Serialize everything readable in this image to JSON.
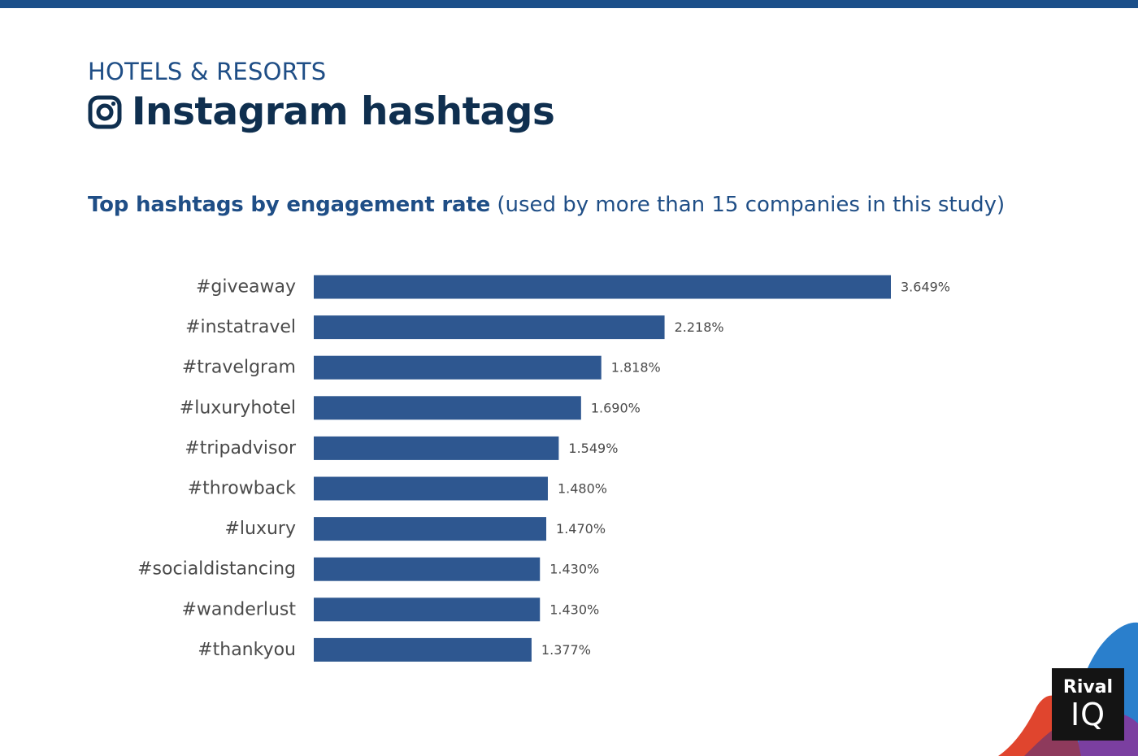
{
  "colors": {
    "top_bar": "#1b4f8a",
    "eyebrow": "#1f4e86",
    "title": "#0f2f4f",
    "subtitle": "#1f4e86",
    "bar": "#2e5790",
    "category_label": "#4a4a4a",
    "value_label": "#4a4a4a"
  },
  "header": {
    "eyebrow": "HOTELS & RESORTS",
    "title": "Instagram hashtags",
    "title_icon": "instagram-icon"
  },
  "subtitle": {
    "bold": "Top hashtags by engagement rate",
    "note": " (used by more than 15 companies in this study)"
  },
  "logo": {
    "line1": "Rival",
    "line2": "IQ"
  },
  "chart_data": {
    "type": "bar",
    "orientation": "horizontal",
    "title": "Top hashtags by engagement rate",
    "categories": [
      "#giveaway",
      "#instatravel",
      "#travelgram",
      "#luxuryhotel",
      "#tripadvisor",
      "#throwback",
      "#luxury",
      "#socialdistancing",
      "#wanderlust",
      "#thankyou"
    ],
    "values": [
      3.649,
      2.218,
      1.818,
      1.69,
      1.549,
      1.48,
      1.47,
      1.43,
      1.43,
      1.377
    ],
    "value_labels": [
      "3.649%",
      "2.218%",
      "1.818%",
      "1.690%",
      "1.549%",
      "1.480%",
      "1.470%",
      "1.430%",
      "1.430%",
      "1.377%"
    ],
    "xlim": [
      0,
      3.649
    ],
    "grid": false,
    "legend": "none"
  }
}
